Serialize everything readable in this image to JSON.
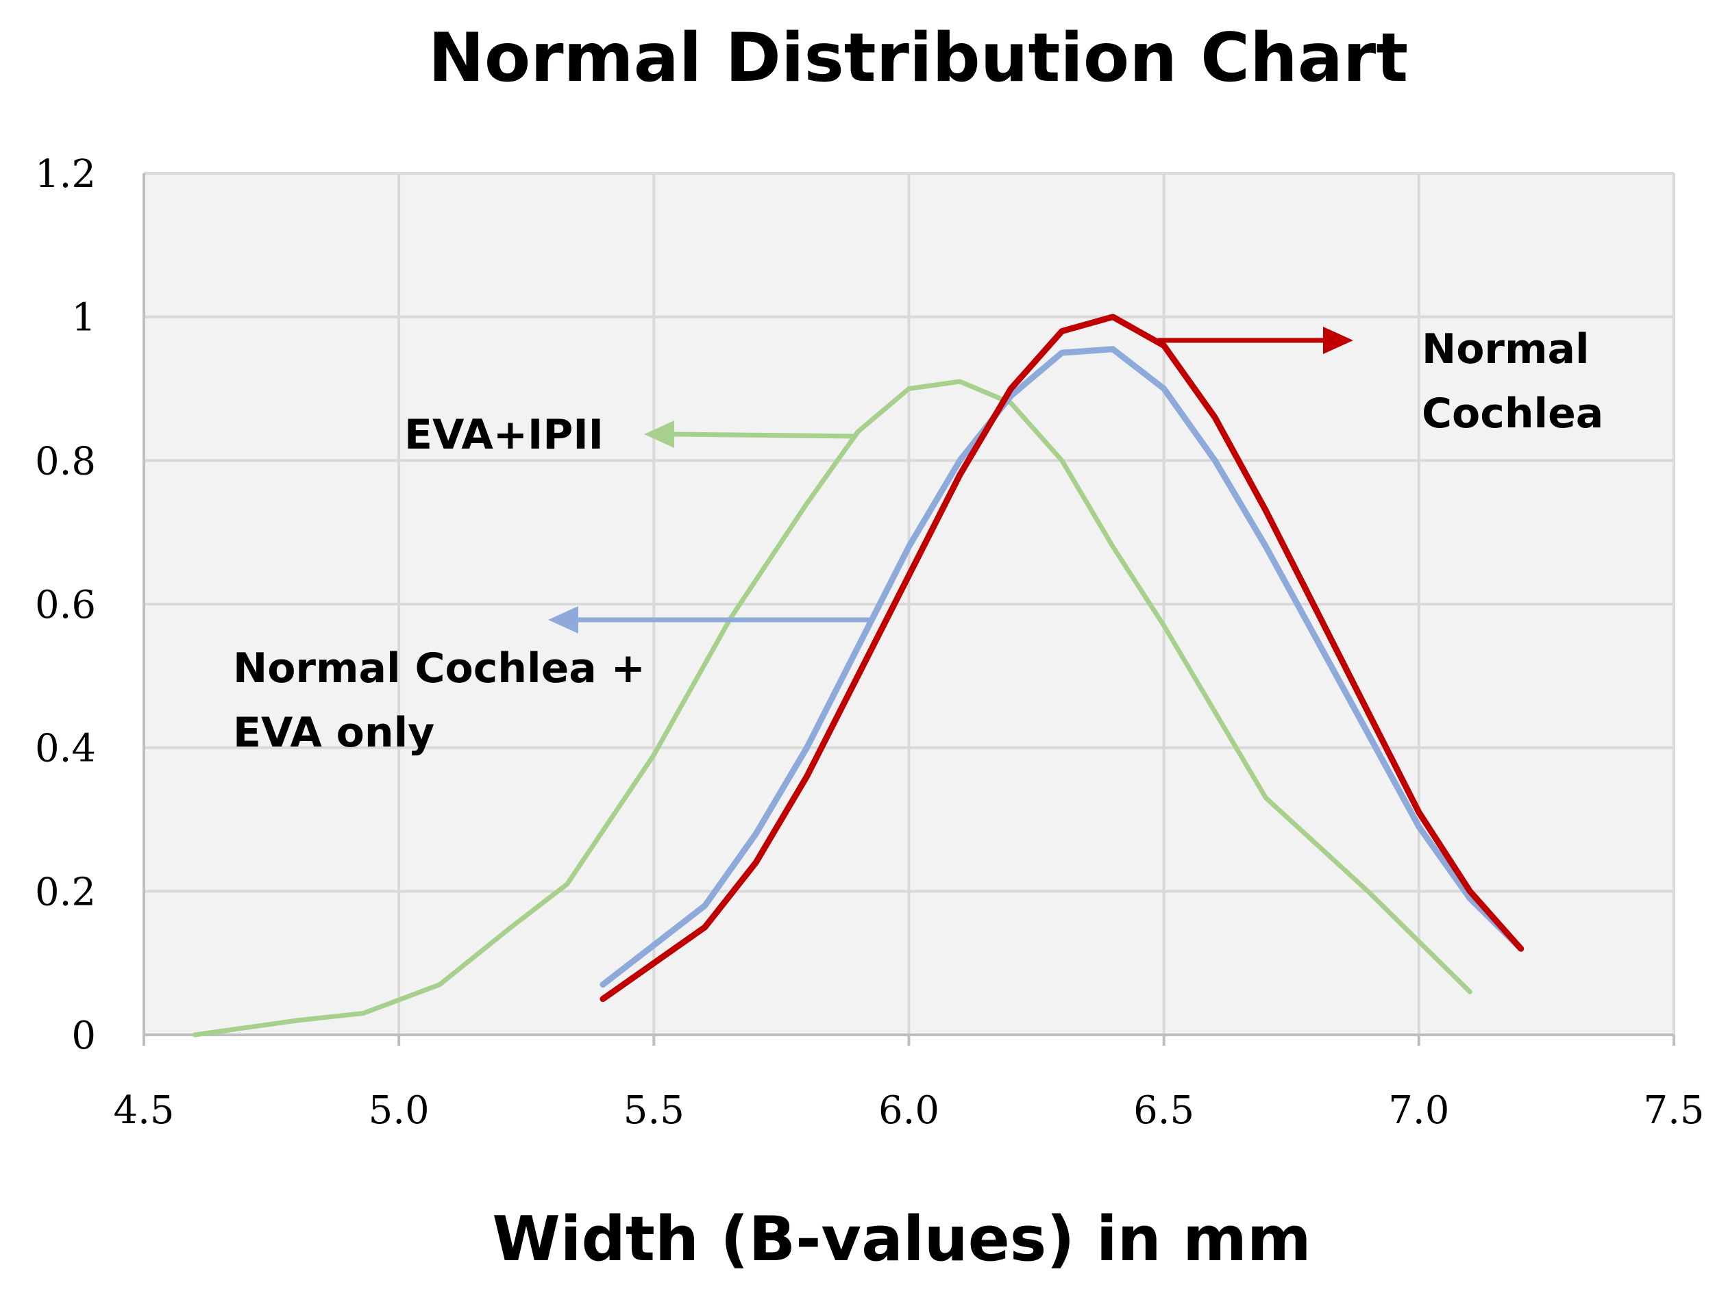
{
  "chart_data": {
    "type": "line",
    "title": "Normal Distribution Chart",
    "xlabel": "Width (B-values) in mm",
    "ylabel": "",
    "xlim": [
      4.5,
      7.5
    ],
    "ylim": [
      0,
      1.2
    ],
    "xticks": [
      4.5,
      5.0,
      5.5,
      6.0,
      6.5,
      7.0,
      7.5
    ],
    "xtick_labels": [
      "4.5",
      "5.0",
      "5.5",
      "6.0",
      "6.5",
      "7.0",
      "7.5"
    ],
    "yticks": [
      0,
      0.2,
      0.4,
      0.6,
      0.8,
      1,
      1.2
    ],
    "ytick_labels": [
      "0",
      "0.2",
      "0.4",
      "0.6",
      "0.8",
      "1",
      "1.2"
    ],
    "grid": true,
    "series": [
      {
        "name": "EVA+IPII",
        "color": "#a8d08d",
        "x": [
          4.6,
          4.8,
          4.93,
          5.08,
          5.22,
          5.33,
          5.5,
          5.65,
          5.8,
          5.9,
          6.0,
          6.1,
          6.2,
          6.3,
          6.4,
          6.5,
          6.6,
          6.7,
          6.9,
          7.1
        ],
        "y": [
          0.0,
          0.02,
          0.03,
          0.07,
          0.15,
          0.21,
          0.39,
          0.58,
          0.74,
          0.84,
          0.9,
          0.91,
          0.88,
          0.8,
          0.68,
          0.57,
          0.45,
          0.33,
          0.2,
          0.06
        ]
      },
      {
        "name": "Normal Cochlea + EVA only",
        "color": "#8eaadb",
        "x": [
          5.4,
          5.6,
          5.7,
          5.8,
          5.9,
          6.0,
          6.1,
          6.2,
          6.3,
          6.4,
          6.5,
          6.6,
          6.7,
          6.8,
          6.9,
          7.0,
          7.1,
          7.2
        ],
        "y": [
          0.07,
          0.18,
          0.28,
          0.4,
          0.54,
          0.68,
          0.8,
          0.89,
          0.95,
          0.955,
          0.9,
          0.8,
          0.68,
          0.55,
          0.42,
          0.29,
          0.19,
          0.12
        ]
      },
      {
        "name": "Normal Cochlea",
        "color": "#c00000",
        "x": [
          5.4,
          5.6,
          5.7,
          5.8,
          5.9,
          6.0,
          6.1,
          6.2,
          6.3,
          6.4,
          6.5,
          6.6,
          6.7,
          6.8,
          6.9,
          7.0,
          7.1,
          7.2
        ],
        "y": [
          0.05,
          0.15,
          0.24,
          0.36,
          0.5,
          0.64,
          0.78,
          0.9,
          0.98,
          1.0,
          0.96,
          0.86,
          0.73,
          0.59,
          0.45,
          0.31,
          0.2,
          0.12
        ]
      }
    ],
    "annotations": [
      {
        "name": "annotation-eva-ipii",
        "lines": [
          "EVA+IPII"
        ],
        "color": "#a8d08d"
      },
      {
        "name": "annotation-normal-cochlea-eva",
        "lines": [
          "Normal Cochlea +",
          "EVA only"
        ],
        "color": "#8eaadb"
      },
      {
        "name": "annotation-normal-cochlea",
        "lines": [
          "Normal",
          "Cochlea"
        ],
        "color": "#c00000"
      }
    ]
  }
}
